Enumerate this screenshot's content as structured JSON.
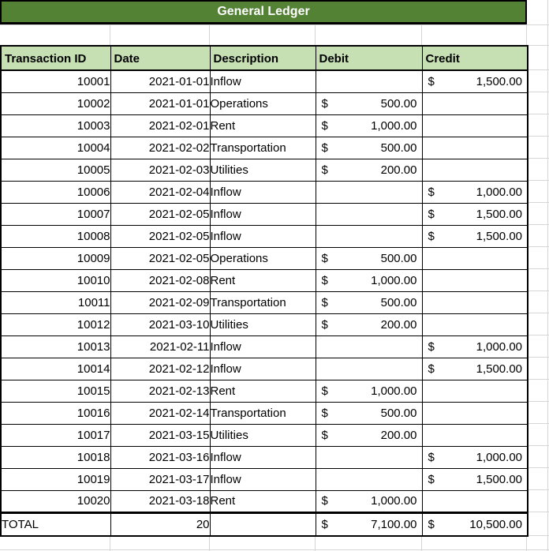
{
  "title": "General Ledger",
  "currency_symbol": "$",
  "columns": [
    "Transaction ID",
    "Date",
    "Description",
    "Debit",
    "Credit"
  ],
  "rows": [
    {
      "id": "10001",
      "date": "2021-01-01",
      "description": "Inflow",
      "debit": "",
      "credit": "1,500.00"
    },
    {
      "id": "10002",
      "date": "2021-01-01",
      "description": "Operations",
      "debit": "500.00",
      "credit": ""
    },
    {
      "id": "10003",
      "date": "2021-02-01",
      "description": "Rent",
      "debit": "1,000.00",
      "credit": ""
    },
    {
      "id": "10004",
      "date": "2021-02-02",
      "description": "Transportation",
      "debit": "500.00",
      "credit": ""
    },
    {
      "id": "10005",
      "date": "2021-02-03",
      "description": "Utilities",
      "debit": "200.00",
      "credit": ""
    },
    {
      "id": "10006",
      "date": "2021-02-04",
      "description": "Inflow",
      "debit": "",
      "credit": "1,000.00"
    },
    {
      "id": "10007",
      "date": "2021-02-05",
      "description": "Inflow",
      "debit": "",
      "credit": "1,500.00"
    },
    {
      "id": "10008",
      "date": "2021-02-05",
      "description": "Inflow",
      "debit": "",
      "credit": "1,500.00"
    },
    {
      "id": "10009",
      "date": "2021-02-05",
      "description": "Operations",
      "debit": "500.00",
      "credit": ""
    },
    {
      "id": "10010",
      "date": "2021-02-08",
      "description": "Rent",
      "debit": "1,000.00",
      "credit": ""
    },
    {
      "id": "10011",
      "date": "2021-02-09",
      "description": "Transportation",
      "debit": "500.00",
      "credit": ""
    },
    {
      "id": "10012",
      "date": "2021-03-10",
      "description": "Utilities",
      "debit": "200.00",
      "credit": ""
    },
    {
      "id": "10013",
      "date": "2021-02-11",
      "description": "Inflow",
      "debit": "",
      "credit": "1,000.00"
    },
    {
      "id": "10014",
      "date": "2021-02-12",
      "description": "Inflow",
      "debit": "",
      "credit": "1,500.00"
    },
    {
      "id": "10015",
      "date": "2021-02-13",
      "description": "Rent",
      "debit": "1,000.00",
      "credit": ""
    },
    {
      "id": "10016",
      "date": "2021-02-14",
      "description": "Transportation",
      "debit": "500.00",
      "credit": ""
    },
    {
      "id": "10017",
      "date": "2021-03-15",
      "description": "Utilities",
      "debit": "200.00",
      "credit": ""
    },
    {
      "id": "10018",
      "date": "2021-03-16",
      "description": "Inflow",
      "debit": "",
      "credit": "1,000.00"
    },
    {
      "id": "10019",
      "date": "2021-03-17",
      "description": "Inflow",
      "debit": "",
      "credit": "1,500.00"
    },
    {
      "id": "10020",
      "date": "2021-03-18",
      "description": "Rent",
      "debit": "1,000.00",
      "credit": ""
    }
  ],
  "total": {
    "label": "TOTAL",
    "count": "20",
    "debit": "7,100.00",
    "credit": "10,500.00"
  },
  "colors": {
    "banner_bg": "#548235",
    "banner_text": "#ffffff",
    "header_bg": "#c6e0b4",
    "border": "#000000",
    "gridline": "#d6d6d6",
    "text": "#000000"
  }
}
